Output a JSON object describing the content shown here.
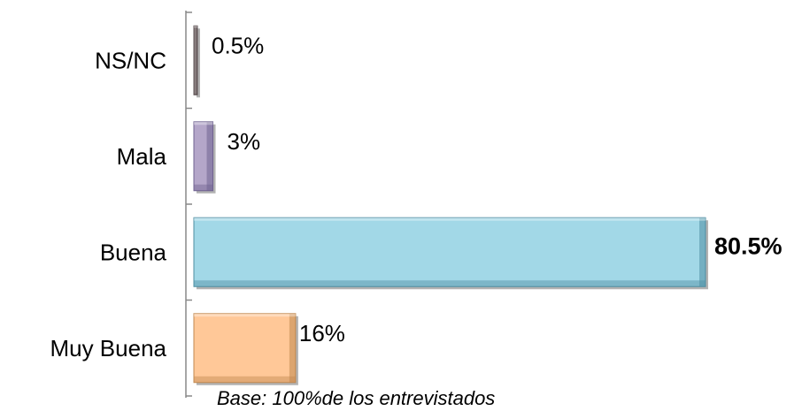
{
  "chart_data": {
    "type": "bar",
    "orientation": "horizontal",
    "categories": [
      "NS/NC",
      "Mala",
      "Buena",
      "Muy Buena"
    ],
    "values": [
      0.5,
      3,
      80.5,
      16
    ],
    "data_labels": [
      "0.5%",
      "3%",
      "80.5%",
      "16%"
    ],
    "bold_labels": [
      false,
      false,
      true,
      false
    ],
    "xlim": [
      0,
      80.5
    ],
    "title": "",
    "xlabel": "",
    "ylabel": "",
    "grid": false,
    "legend": "none",
    "colors": [
      "#8a7f80",
      "#b4a6c9",
      "#a2d8e7",
      "#ffc898"
    ],
    "edge_colors": [
      "#5a4f50",
      "#6f6290",
      "#4e8ea2",
      "#c0884f"
    ]
  },
  "footnote": "Base: 100%de los entrevistados"
}
